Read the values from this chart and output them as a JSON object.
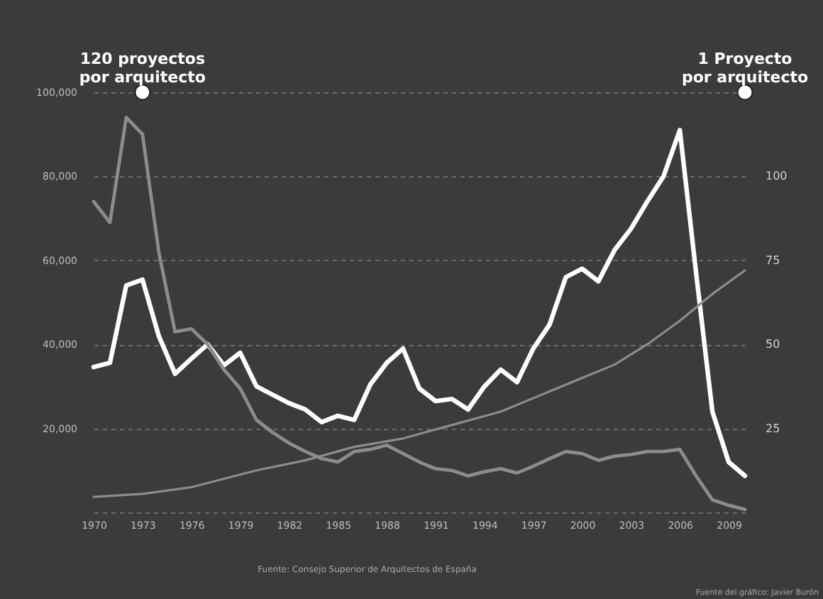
{
  "chart_data": {
    "type": "line",
    "x": [
      1970,
      1971,
      1972,
      1973,
      1974,
      1975,
      1976,
      1977,
      1978,
      1979,
      1980,
      1981,
      1982,
      1983,
      1984,
      1985,
      1986,
      1987,
      1988,
      1989,
      1990,
      1991,
      1992,
      1993,
      1994,
      1995,
      1996,
      1997,
      1998,
      1999,
      2000,
      2001,
      2002,
      2003,
      2004,
      2005,
      2006,
      2007,
      2008,
      2009,
      2010
    ],
    "series": [
      {
        "color": "#ffffff",
        "values": [
          34600,
          35600,
          54000,
          55400,
          42000,
          33000,
          36600,
          40000,
          35000,
          38000,
          30000,
          28000,
          26000,
          24500,
          21500,
          23000,
          22000,
          30500,
          35600,
          39000,
          29500,
          26500,
          27000,
          24500,
          30000,
          34000,
          31000,
          39000,
          44700,
          56000,
          58000,
          55000,
          62500,
          67500,
          74000,
          80000,
          91000,
          57000,
          24000,
          12000,
          8700
        ]
      },
      {
        "color": "#8c8c8c",
        "values": [
          74000,
          69000,
          94000,
          90000,
          62000,
          43000,
          43700,
          40000,
          34000,
          29500,
          22000,
          19000,
          16500,
          14500,
          12800,
          12000,
          14500,
          15000,
          16000,
          14000,
          12000,
          10400,
          10000,
          8700,
          9700,
          10400,
          9400,
          11000,
          12800,
          14500,
          14000,
          12400,
          13400,
          13800,
          14500,
          14500,
          15000,
          8700,
          3000,
          1700,
          700
        ]
      },
      {
        "color": "#8c8c8c",
        "axis": "y2",
        "x": [
          1970,
          1973,
          1976,
          1980,
          1983,
          1986,
          1989,
          1992,
          1995,
          1998,
          2000,
          2002,
          2004,
          2006,
          2008,
          2010
        ],
        "values": [
          4.6,
          5.5,
          7.5,
          12.5,
          15.5,
          19.5,
          22,
          26,
          30,
          36,
          40,
          44,
          50,
          57,
          65,
          72
        ]
      }
    ],
    "xlim": [
      1970,
      2010
    ],
    "xticks": [
      1970,
      1973,
      1976,
      1979,
      1982,
      1985,
      1988,
      1991,
      1994,
      1997,
      2000,
      2003,
      2006,
      2009
    ],
    "ylim": [
      0,
      100000
    ],
    "yticks": [
      {
        "value": 20000,
        "label": "20,000"
      },
      {
        "value": 40000,
        "label": "40,000"
      },
      {
        "value": 60000,
        "label": "60,000"
      },
      {
        "value": 80000,
        "label": "80,000"
      },
      {
        "value": 100000,
        "label": "100,000"
      }
    ],
    "y2lim": [
      0,
      125
    ],
    "y2ticks": [
      25,
      50,
      75,
      100
    ],
    "grid": "y",
    "line_style": "solid",
    "marker": "none",
    "legend": false,
    "annotations": [
      {
        "text": "120 proyectos\npor arquitecto",
        "x": 1973,
        "y": 100000
      },
      {
        "text": "1 Proyecto\npor arquitecto",
        "x": 2010,
        "y": 100000
      },
      "Fuente: Consejo Superior de Arquitectos de España",
      "Fuente del gráfico: Javier Burón"
    ]
  }
}
